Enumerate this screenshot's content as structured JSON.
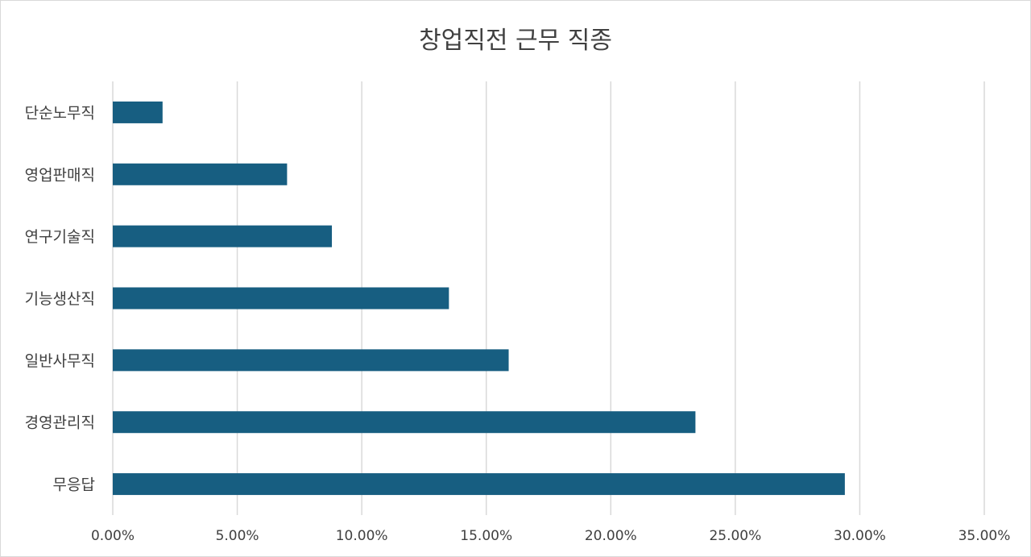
{
  "chart_data": {
    "type": "bar",
    "orientation": "horizontal",
    "title": "창업직전 근무 직종",
    "categories": [
      "단순노무직",
      "영업판매직",
      "연구기술직",
      "기능생산직",
      "일반사무직",
      "경영관리직",
      "무응답"
    ],
    "values": [
      2.0,
      7.0,
      8.8,
      13.5,
      15.9,
      23.4,
      29.4
    ],
    "value_unit": "%",
    "xlim": [
      0,
      35
    ],
    "x_ticks": [
      "0.00%",
      "5.00%",
      "10.00%",
      "15.00%",
      "20.00%",
      "25.00%",
      "30.00%",
      "35.00%"
    ],
    "grid": "vertical",
    "legend": "none",
    "bar_color": "#175e81",
    "grid_color": "#d9d9d9"
  }
}
